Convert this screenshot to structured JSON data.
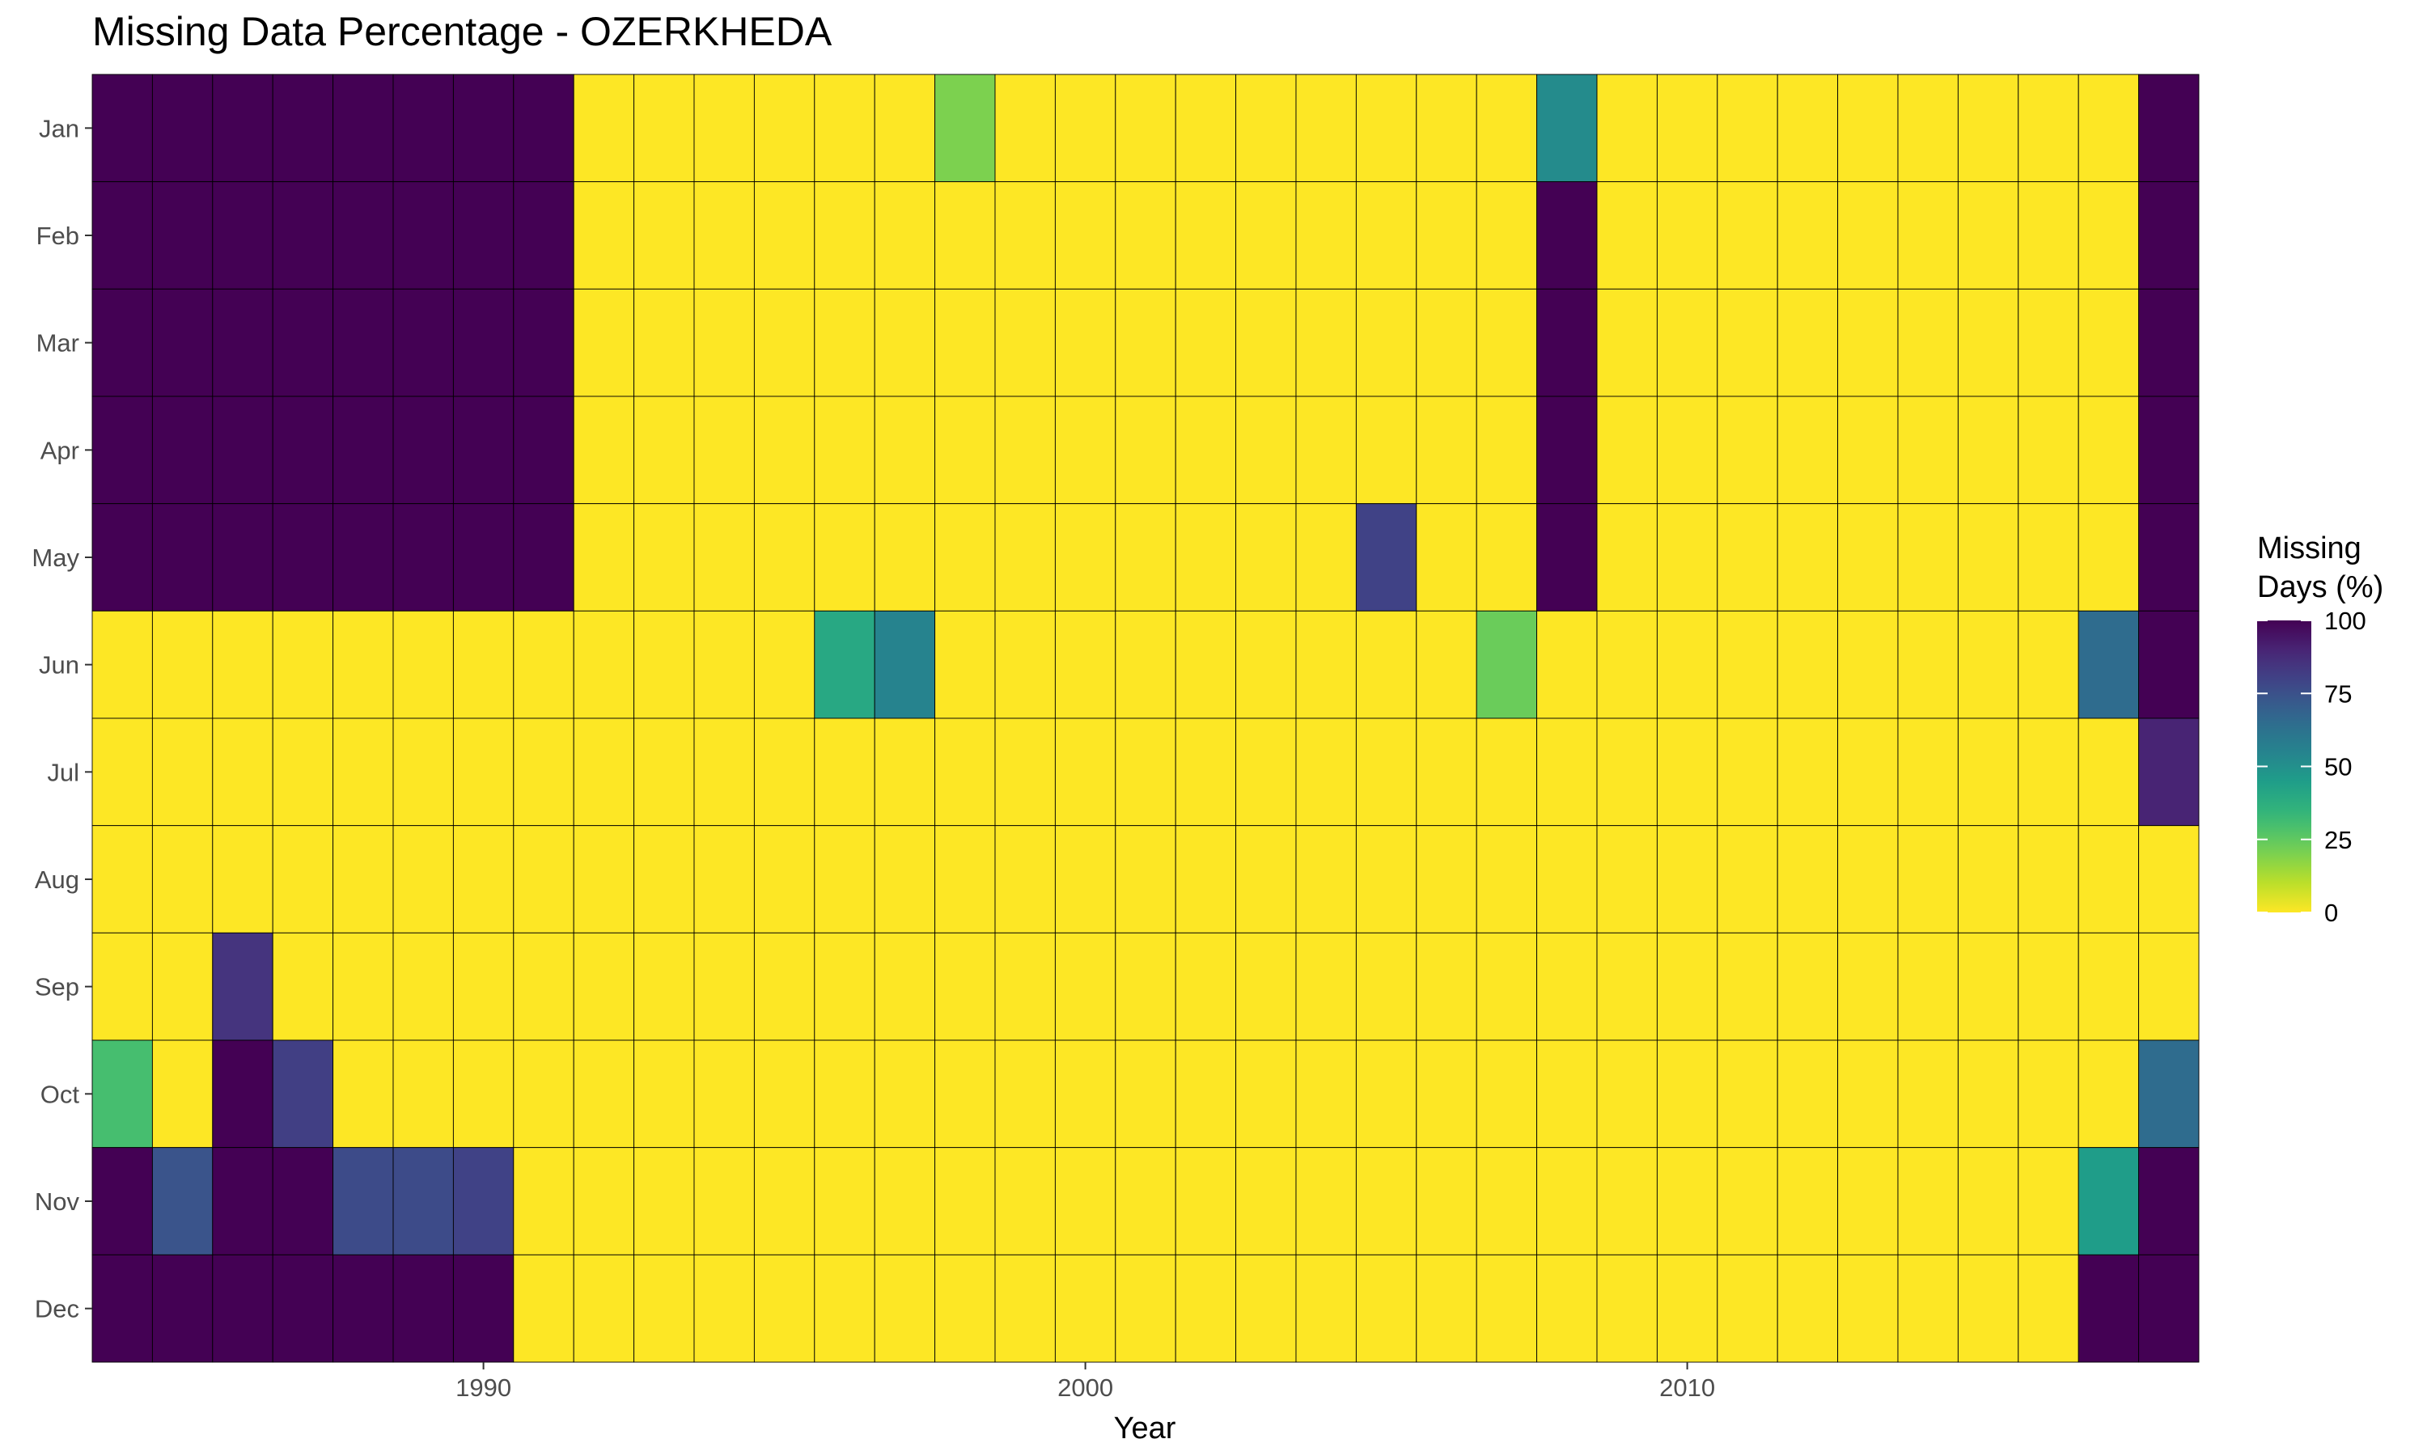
{
  "chart_data": {
    "type": "heatmap",
    "title": "Missing Data Percentage - OZERKHEDA",
    "xlabel": "Year",
    "ylabel": "",
    "x_tick_labels": [
      "1990",
      "2000",
      "2010"
    ],
    "x_tick_values": [
      1990,
      2000,
      2010
    ],
    "years": [
      1984,
      1985,
      1986,
      1987,
      1988,
      1989,
      1990,
      1991,
      1992,
      1993,
      1994,
      1995,
      1996,
      1997,
      1998,
      1999,
      2000,
      2001,
      2002,
      2003,
      2004,
      2005,
      2006,
      2007,
      2008,
      2009,
      2010,
      2011,
      2012,
      2013,
      2014,
      2015,
      2016,
      2017,
      2018
    ],
    "months": [
      "Jan",
      "Feb",
      "Mar",
      "Apr",
      "May",
      "Jun",
      "Jul",
      "Aug",
      "Sep",
      "Oct",
      "Nov",
      "Dec"
    ],
    "values": [
      [
        100,
        100,
        100,
        100,
        100,
        100,
        100,
        100,
        0,
        0,
        0,
        0,
        0,
        0,
        20,
        0,
        0,
        0,
        0,
        0,
        0,
        0,
        0,
        0,
        52,
        0,
        0,
        0,
        0,
        0,
        0,
        0,
        0,
        0,
        100
      ],
      [
        100,
        100,
        100,
        100,
        100,
        100,
        100,
        100,
        0,
        0,
        0,
        0,
        0,
        0,
        0,
        0,
        0,
        0,
        0,
        0,
        0,
        0,
        0,
        0,
        100,
        0,
        0,
        0,
        0,
        0,
        0,
        0,
        0,
        0,
        100
      ],
      [
        100,
        100,
        100,
        100,
        100,
        100,
        100,
        100,
        0,
        0,
        0,
        0,
        0,
        0,
        0,
        0,
        0,
        0,
        0,
        0,
        0,
        0,
        0,
        0,
        100,
        0,
        0,
        0,
        0,
        0,
        0,
        0,
        0,
        0,
        100
      ],
      [
        100,
        100,
        100,
        100,
        100,
        100,
        100,
        100,
        0,
        0,
        0,
        0,
        0,
        0,
        0,
        0,
        0,
        0,
        0,
        0,
        0,
        0,
        0,
        0,
        100,
        0,
        0,
        0,
        0,
        0,
        0,
        0,
        0,
        0,
        100
      ],
      [
        100,
        100,
        100,
        100,
        100,
        100,
        100,
        100,
        0,
        0,
        0,
        0,
        0,
        0,
        0,
        0,
        0,
        0,
        0,
        0,
        0,
        80,
        0,
        0,
        100,
        0,
        0,
        0,
        0,
        0,
        0,
        0,
        0,
        0,
        100
      ],
      [
        0,
        0,
        0,
        0,
        0,
        0,
        0,
        0,
        0,
        0,
        0,
        0,
        40,
        55,
        0,
        0,
        0,
        0,
        0,
        0,
        0,
        0,
        0,
        23,
        0,
        0,
        0,
        0,
        0,
        0,
        0,
        0,
        0,
        65,
        100
      ],
      [
        0,
        0,
        0,
        0,
        0,
        0,
        0,
        0,
        0,
        0,
        0,
        0,
        0,
        0,
        0,
        0,
        0,
        0,
        0,
        0,
        0,
        0,
        0,
        0,
        0,
        0,
        0,
        0,
        0,
        0,
        0,
        0,
        0,
        0,
        90
      ],
      [
        0,
        0,
        0,
        0,
        0,
        0,
        0,
        0,
        0,
        0,
        0,
        0,
        0,
        0,
        0,
        0,
        0,
        0,
        0,
        0,
        0,
        0,
        0,
        0,
        0,
        0,
        0,
        0,
        0,
        0,
        0,
        0,
        0,
        0,
        0
      ],
      [
        0,
        0,
        85,
        0,
        0,
        0,
        0,
        0,
        0,
        0,
        0,
        0,
        0,
        0,
        0,
        0,
        0,
        0,
        0,
        0,
        0,
        0,
        0,
        0,
        0,
        0,
        0,
        0,
        0,
        0,
        0,
        0,
        0,
        0,
        0
      ],
      [
        30,
        0,
        100,
        81,
        0,
        0,
        0,
        0,
        0,
        0,
        0,
        0,
        0,
        0,
        0,
        0,
        0,
        0,
        0,
        0,
        0,
        0,
        0,
        0,
        0,
        0,
        0,
        0,
        0,
        0,
        0,
        0,
        0,
        0,
        65
      ],
      [
        100,
        74,
        100,
        100,
        77,
        77,
        80,
        0,
        0,
        0,
        0,
        0,
        0,
        0,
        0,
        0,
        0,
        0,
        0,
        0,
        0,
        0,
        0,
        0,
        0,
        0,
        0,
        0,
        0,
        0,
        0,
        0,
        0,
        45,
        100
      ],
      [
        100,
        100,
        100,
        100,
        100,
        100,
        100,
        0,
        0,
        0,
        0,
        0,
        0,
        0,
        0,
        0,
        0,
        0,
        0,
        0,
        0,
        0,
        0,
        0,
        0,
        0,
        0,
        0,
        0,
        0,
        0,
        0,
        0,
        100,
        100
      ]
    ],
    "zlim": [
      0,
      100
    ],
    "legend": {
      "title_line1": "Missing",
      "title_line2": "Days (%)",
      "ticks": [
        100,
        75,
        50,
        25,
        0
      ],
      "tick_labels": [
        "100",
        "75",
        "50",
        "25",
        "0"
      ],
      "placement": "right"
    },
    "colorscale": "viridis-reversed",
    "grid": false
  }
}
